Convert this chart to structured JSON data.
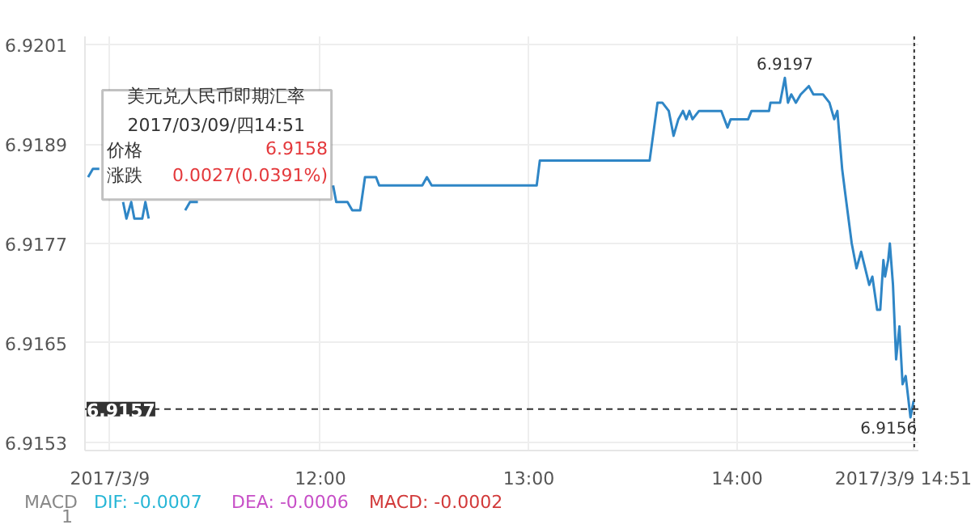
{
  "chart_data": {
    "type": "line",
    "x": [
      10.885,
      10.908,
      10.939,
      10.96,
      11.053,
      11.069,
      11.092,
      11.107,
      11.145,
      11.16,
      11.176,
      11.2,
      11.351,
      11.374,
      11.412,
      11.45,
      12.061,
      12.076,
      12.13,
      12.153,
      12.191,
      12.214,
      12.267,
      12.282,
      12.489,
      12.511,
      12.534,
      13.038,
      13.053,
      13.58,
      13.618,
      13.641,
      13.672,
      13.695,
      13.718,
      13.74,
      13.756,
      13.771,
      13.786,
      13.817,
      13.924,
      13.954,
      13.969,
      14.053,
      14.069,
      14.153,
      14.16,
      14.206,
      14.229,
      14.244,
      14.26,
      14.282,
      14.305,
      14.344,
      14.366,
      14.412,
      14.443,
      14.466,
      14.481,
      14.504,
      14.519,
      14.55,
      14.573,
      14.595,
      14.634,
      14.649,
      14.672,
      14.687,
      14.702,
      14.71,
      14.725,
      14.733,
      14.748,
      14.763,
      14.779,
      14.794,
      14.809,
      14.832,
      14.847
    ],
    "series": [
      {
        "color": "#2f86c6",
        "values": [
          6.9185,
          6.9186,
          6.9186,
          null,
          6.9182,
          6.918,
          6.9182,
          6.918,
          6.918,
          6.9182,
          6.918,
          null,
          6.9181,
          6.9182,
          6.9182,
          null,
          6.9184,
          6.9182,
          6.9182,
          6.9181,
          6.9181,
          6.9185,
          6.9185,
          6.9184,
          6.9184,
          6.9185,
          6.9184,
          6.9184,
          6.9187,
          6.9187,
          6.9194,
          6.9194,
          6.9193,
          6.919,
          6.9192,
          6.9193,
          6.9192,
          6.9193,
          6.9192,
          6.9193,
          6.9193,
          6.9191,
          6.9192,
          6.9192,
          6.9193,
          6.9193,
          6.9194,
          6.9194,
          6.9197,
          6.9194,
          6.9195,
          6.9194,
          6.9195,
          6.9196,
          6.9195,
          6.9195,
          6.9194,
          6.9192,
          6.9193,
          6.9186,
          6.9183,
          6.9177,
          6.9174,
          6.9176,
          6.9172,
          6.9173,
          6.9169,
          6.9169,
          6.9175,
          6.9173,
          6.9175,
          6.9177,
          6.9172,
          6.9163,
          6.9167,
          6.916,
          6.9161,
          6.9156,
          6.9158
        ]
      }
    ],
    "xlim": [
      10.87,
      14.87
    ],
    "ylim": [
      6.9152,
      6.9202
    ],
    "xticks": [
      {
        "value": 10.99,
        "label": "2017/3/9"
      },
      {
        "value": 12,
        "label": "12:00"
      },
      {
        "value": 13,
        "label": "13:00"
      },
      {
        "value": 14,
        "label": "14:00"
      },
      {
        "value": 14.85,
        "label": "2017/3/9 14:51"
      }
    ],
    "yticks": [
      6.9153,
      6.9165,
      6.9177,
      6.9189,
      6.9201
    ],
    "grid": true,
    "marker": "none",
    "line_style": "solid",
    "ref_lines": [
      {
        "axis": "y",
        "value": 6.9157,
        "label": "6.9157",
        "line_style": "dashed",
        "color": "#333333"
      },
      {
        "axis": "x",
        "value": 14.85,
        "line_style": "dotted",
        "color": "#333333"
      }
    ],
    "annotations": [
      {
        "text": "6.9197",
        "x": 14.229,
        "y": 6.9197
      },
      {
        "text": "6.9156",
        "x": 14.832,
        "y": 6.9156
      },
      "美元兑人民币即期汇率",
      "2017/03/09/四14:51",
      "价格",
      "6.9158",
      "涨跌",
      "0.0027(0.0391%)",
      "MACD",
      "DIF: -0.0007",
      "DEA: -0.0006",
      "MACD: -0.0002",
      "1"
    ]
  }
}
